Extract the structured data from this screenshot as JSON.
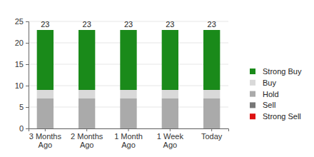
{
  "chart_data": {
    "type": "bar",
    "stacked": true,
    "categories": [
      "3 Months Ago",
      "2 Months Ago",
      "1 Month Ago",
      "1 Week Ago",
      "Today"
    ],
    "series": [
      {
        "name": "Strong Buy",
        "color": "#1a8a1a",
        "values": [
          14,
          14,
          14,
          14,
          14
        ]
      },
      {
        "name": "Buy",
        "color": "#d9d9d9",
        "values": [
          2,
          2,
          2,
          2,
          2
        ]
      },
      {
        "name": "Hold",
        "color": "#aaaaaa",
        "values": [
          7,
          7,
          7,
          7,
          7
        ]
      },
      {
        "name": "Sell",
        "color": "#777777",
        "values": [
          0,
          0,
          0,
          0,
          0
        ]
      },
      {
        "name": "Strong Sell",
        "color": "#dd1111",
        "values": [
          0,
          0,
          0,
          0,
          0
        ]
      }
    ],
    "totals": [
      23,
      23,
      23,
      23,
      23
    ],
    "ylim": [
      0,
      25
    ],
    "yticks": [
      0,
      5,
      10,
      15,
      20,
      25
    ],
    "grid": true,
    "legend": "right"
  }
}
